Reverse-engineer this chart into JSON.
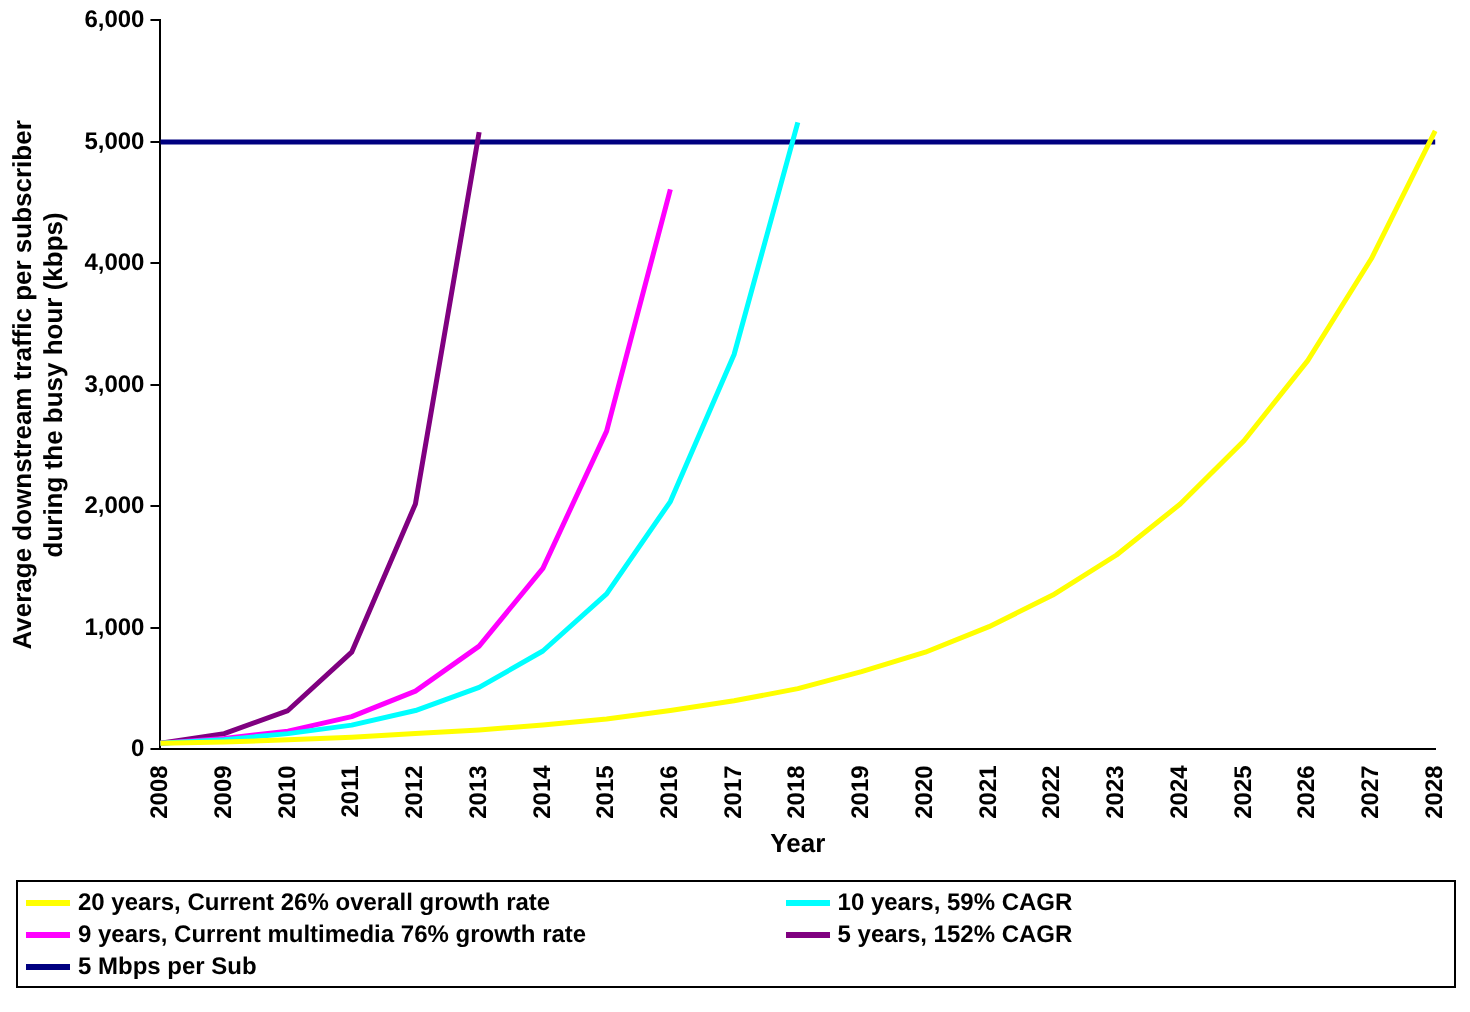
{
  "chart_data": {
    "type": "line",
    "xlabel": "Year",
    "ylabel": "Average downstream traffic per subscriber during the busy hour (kbps)",
    "categories": [
      "2008",
      "2009",
      "2010",
      "2011",
      "2012",
      "2013",
      "2014",
      "2015",
      "2016",
      "2017",
      "2018",
      "2019",
      "2020",
      "2021",
      "2022",
      "2023",
      "2024",
      "2025",
      "2026",
      "2027",
      "2028"
    ],
    "series": [
      {
        "name": "20 years, Current 26% overall growth rate",
        "color": "#ffff00",
        "values": [
          50,
          60,
          80,
          100,
          130,
          160,
          200,
          250,
          320,
          400,
          500,
          640,
          800,
          1010,
          1270,
          1600,
          2020,
          2540,
          3200,
          4040,
          5090
        ]
      },
      {
        "name": "10 years, 59% CAGR",
        "color": "#00ffff",
        "values": [
          50,
          80,
          130,
          200,
          320,
          510,
          810,
          1280,
          2040,
          3250,
          5160,
          null,
          null,
          null,
          null,
          null,
          null,
          null,
          null,
          null,
          null
        ]
      },
      {
        "name": "9 years, Current multimedia 76% growth rate",
        "color": "#ff00ff",
        "values": [
          50,
          90,
          150,
          270,
          480,
          850,
          1490,
          2620,
          4610,
          null,
          null,
          null,
          null,
          null,
          null,
          null,
          null,
          null,
          null,
          null,
          null
        ]
      },
      {
        "name": "5 years, 152% CAGR",
        "color": "#800080",
        "values": [
          50,
          130,
          320,
          800,
          2020,
          5080,
          null,
          null,
          null,
          null,
          null,
          null,
          null,
          null,
          null,
          null,
          null,
          null,
          null,
          null,
          null
        ]
      },
      {
        "name": "5 Mbps per Sub",
        "color": "#000080",
        "values": [
          5000,
          5000,
          5000,
          5000,
          5000,
          5000,
          5000,
          5000,
          5000,
          5000,
          5000,
          5000,
          5000,
          5000,
          5000,
          5000,
          5000,
          5000,
          5000,
          5000,
          5000
        ]
      }
    ],
    "ylim": [
      0,
      6000
    ],
    "yticks": [
      {
        "value": 0,
        "label": "0"
      },
      {
        "value": 1000,
        "label": "1,000"
      },
      {
        "value": 2000,
        "label": "2,000"
      },
      {
        "value": 3000,
        "label": "3,000"
      },
      {
        "value": 4000,
        "label": "4,000"
      },
      {
        "value": 5000,
        "label": "5,000"
      },
      {
        "value": 6000,
        "label": "6,000"
      }
    ],
    "grid": false,
    "legend": "bottom",
    "marker": "none",
    "line_style": "solid"
  }
}
